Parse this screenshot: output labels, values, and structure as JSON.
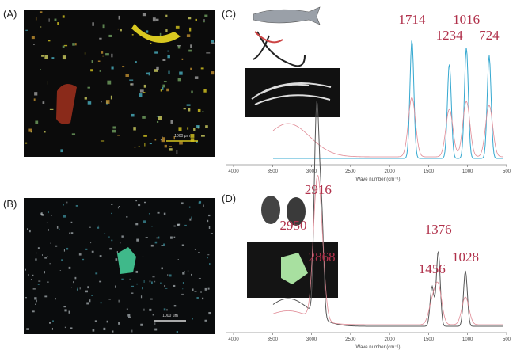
{
  "panels": [
    {
      "label": "(A)",
      "scale_bar": "1000 μm"
    },
    {
      "label": "(B)",
      "scale_bar": "1000 μm"
    }
  ],
  "spectra": [
    {
      "label": "(C)",
      "peaks": [
        1714,
        1234,
        1016,
        724
      ],
      "xlim": [
        4000,
        500
      ],
      "xticks": [
        4000,
        3500,
        3000,
        2500,
        2000,
        1500,
        1000,
        500
      ],
      "x_label": "Wave number (cm⁻¹)"
    },
    {
      "label": "(D)",
      "peaks": [
        2950,
        2916,
        2868,
        1456,
        1376,
        1028
      ],
      "xlim": [
        4000,
        500
      ],
      "xticks": [
        4000,
        3500,
        3000,
        2500,
        2000,
        1500,
        1000,
        500
      ],
      "x_label": "Wave number (cm⁻¹)"
    }
  ]
}
